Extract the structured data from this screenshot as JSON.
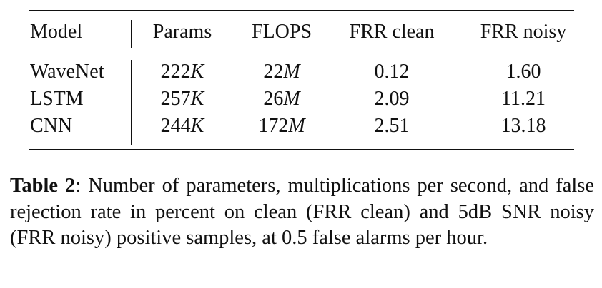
{
  "table": {
    "header": [
      "Model",
      "Params",
      "FLOPS",
      "FRR clean",
      "FRR noisy"
    ],
    "rows": [
      [
        "WaveNet",
        "222K",
        "22M",
        "0.12",
        "1.60"
      ],
      [
        "LSTM",
        "257K",
        "26M",
        "2.09",
        "11.21"
      ],
      [
        "CNN",
        "244K",
        "172M",
        "2.51",
        "13.18"
      ]
    ]
  },
  "caption": {
    "label": "Table 2",
    "text": ": Number of parameters, multiplications per second, and false rejection rate in percent on clean (FRR clean) and 5dB SNR noisy (FRR noisy) positive samples, at 0.5 false alarms per hour."
  }
}
